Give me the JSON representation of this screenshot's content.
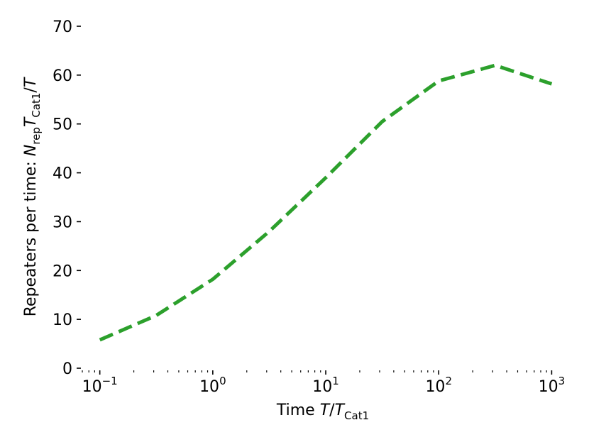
{
  "chart_data": {
    "type": "line",
    "xscale": "log",
    "xlim": [
      0.07,
      1200
    ],
    "ylim": [
      0,
      70
    ],
    "x_ticks": [
      {
        "base": "10",
        "exp": "−1",
        "value": 0.1
      },
      {
        "base": "10",
        "exp": "0",
        "value": 1
      },
      {
        "base": "10",
        "exp": "1",
        "value": 10
      },
      {
        "base": "10",
        "exp": "2",
        "value": 100
      },
      {
        "base": "10",
        "exp": "3",
        "value": 1000
      }
    ],
    "y_ticks": [
      0,
      10,
      20,
      30,
      40,
      50,
      60,
      70
    ],
    "xlabel": {
      "prefix": "Time ",
      "var": "T",
      "slash": "/",
      "var2": "T",
      "sub": "Cat1"
    },
    "ylabel": {
      "prefix": "Repeaters per time: ",
      "var": "N",
      "sub": "rep",
      "var2": "T",
      "sub2": "Cat1",
      "suffix": "/",
      "var3": "T"
    },
    "grid": false,
    "series": [
      {
        "color": "#2ca02c",
        "style": "dashed",
        "x": [
          0.1,
          0.316,
          1,
          3.16,
          10,
          31.6,
          100,
          316,
          1000
        ],
        "y": [
          5.8,
          10.8,
          18.2,
          28,
          39,
          50.5,
          58.8,
          62,
          58.2
        ]
      }
    ]
  }
}
